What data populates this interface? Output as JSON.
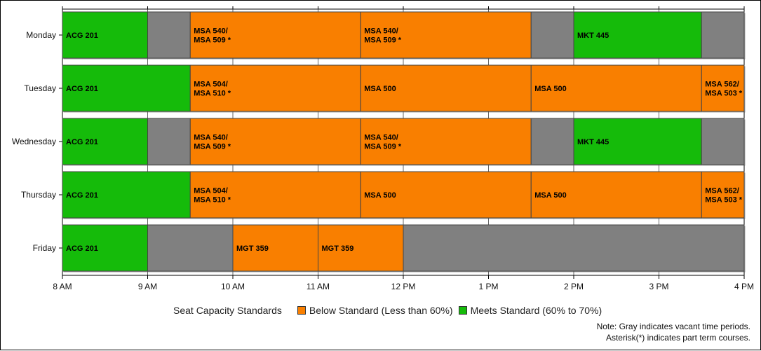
{
  "chart_data": {
    "type": "bar",
    "orientation": "horizontal",
    "subtype": "timeline",
    "categories": [
      "Monday",
      "Tuesday",
      "Wednesday",
      "Thursday",
      "Friday"
    ],
    "x_ticks": [
      "8 AM",
      "9 AM",
      "10 AM",
      "11 AM",
      "12 PM",
      "1 PM",
      "2 PM",
      "3 PM",
      "4 PM"
    ],
    "xlim": [
      8,
      16
    ],
    "grid": true,
    "colors": {
      "below": "#f97f00",
      "meets": "#15bb0a",
      "vacant": "#808080"
    },
    "rows": [
      {
        "day": "Monday",
        "segments": [
          {
            "start": 8,
            "end": 9,
            "status": "meets",
            "label": [
              "ACG 201"
            ]
          },
          {
            "start": 9,
            "end": 9.5,
            "status": "vacant",
            "label": []
          },
          {
            "start": 9.5,
            "end": 11.5,
            "status": "below",
            "label": [
              "MSA 540/",
              "MSA 509 *"
            ]
          },
          {
            "start": 11.5,
            "end": 13.5,
            "status": "below",
            "label": [
              "MSA 540/",
              "MSA 509 *"
            ]
          },
          {
            "start": 13.5,
            "end": 14,
            "status": "vacant",
            "label": []
          },
          {
            "start": 14,
            "end": 15.5,
            "status": "meets",
            "label": [
              "MKT 445"
            ]
          },
          {
            "start": 15.5,
            "end": 16,
            "status": "vacant",
            "label": []
          }
        ]
      },
      {
        "day": "Tuesday",
        "segments": [
          {
            "start": 8,
            "end": 9.5,
            "status": "meets",
            "label": [
              "ACG 201"
            ]
          },
          {
            "start": 9.5,
            "end": 11.5,
            "status": "below",
            "label": [
              "MSA 504/",
              "MSA 510 *"
            ]
          },
          {
            "start": 11.5,
            "end": 13.5,
            "status": "below",
            "label": [
              "MSA 500"
            ]
          },
          {
            "start": 13.5,
            "end": 15.5,
            "status": "below",
            "label": [
              "MSA 500"
            ]
          },
          {
            "start": 15.5,
            "end": 16,
            "status": "below",
            "label": [
              "MSA 562/",
              "MSA 503 *"
            ]
          }
        ]
      },
      {
        "day": "Wednesday",
        "segments": [
          {
            "start": 8,
            "end": 9,
            "status": "meets",
            "label": [
              "ACG 201"
            ]
          },
          {
            "start": 9,
            "end": 9.5,
            "status": "vacant",
            "label": []
          },
          {
            "start": 9.5,
            "end": 11.5,
            "status": "below",
            "label": [
              "MSA 540/",
              "MSA 509 *"
            ]
          },
          {
            "start": 11.5,
            "end": 13.5,
            "status": "below",
            "label": [
              "MSA 540/",
              "MSA 509 *"
            ]
          },
          {
            "start": 13.5,
            "end": 14,
            "status": "vacant",
            "label": []
          },
          {
            "start": 14,
            "end": 15.5,
            "status": "meets",
            "label": [
              "MKT 445"
            ]
          },
          {
            "start": 15.5,
            "end": 16,
            "status": "vacant",
            "label": []
          }
        ]
      },
      {
        "day": "Thursday",
        "segments": [
          {
            "start": 8,
            "end": 9.5,
            "status": "meets",
            "label": [
              "ACG 201"
            ]
          },
          {
            "start": 9.5,
            "end": 11.5,
            "status": "below",
            "label": [
              "MSA 504/",
              "MSA 510 *"
            ]
          },
          {
            "start": 11.5,
            "end": 13.5,
            "status": "below",
            "label": [
              "MSA 500"
            ]
          },
          {
            "start": 13.5,
            "end": 15.5,
            "status": "below",
            "label": [
              "MSA 500"
            ]
          },
          {
            "start": 15.5,
            "end": 16,
            "status": "below",
            "label": [
              "MSA 562/",
              "MSA 503 *"
            ]
          }
        ]
      },
      {
        "day": "Friday",
        "segments": [
          {
            "start": 8,
            "end": 9,
            "status": "meets",
            "label": [
              "ACG 201"
            ]
          },
          {
            "start": 9,
            "end": 10,
            "status": "vacant",
            "label": []
          },
          {
            "start": 10,
            "end": 11,
            "status": "below",
            "label": [
              "MGT 359"
            ]
          },
          {
            "start": 11,
            "end": 12,
            "status": "below",
            "label": [
              "MGT 359"
            ]
          },
          {
            "start": 12,
            "end": 16,
            "status": "vacant",
            "label": []
          }
        ]
      }
    ],
    "legend": {
      "title": "Seat Capacity Standards",
      "placement": "bottom",
      "items": [
        {
          "key": "below",
          "label": "Below Standard (Less than 60%)"
        },
        {
          "key": "meets",
          "label": "Meets Standard (60% to 70%)"
        }
      ]
    },
    "notes": [
      "Note: Gray indicates vacant time periods.",
      "Asterisk(*) indicates part term courses."
    ]
  }
}
